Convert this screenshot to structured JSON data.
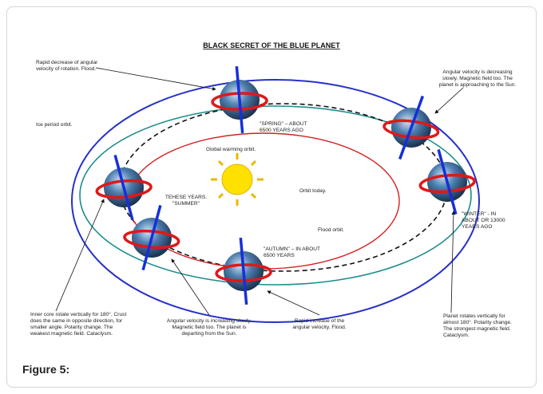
{
  "figure": {
    "title": "BLACK SECRET OF THE BLUE PLANET",
    "caption": "Figure 5:",
    "annotations": [
      {
        "lines": [
          "Rapid decrease of angular",
          "velocity of rotation. Flood."
        ]
      },
      {
        "lines": [
          "Ice period orbit."
        ]
      },
      {
        "lines": [
          "Angular velocity is decreasing",
          "slowly. Magnetic field too. The",
          "planet is approaching to the Sun."
        ]
      },
      {
        "lines": [
          "\"SPRING\" – ABOUT",
          "6500 YEARS AGO"
        ]
      },
      {
        "lines": [
          "Global warming orbit."
        ]
      },
      {
        "lines": [
          "TEHESE YEARS.",
          "\"SUMMER\""
        ]
      },
      {
        "lines": [
          "Orbit today."
        ]
      },
      {
        "lines": [
          "Flood orbit."
        ]
      },
      {
        "lines": [
          "\"WINTER\" - IN",
          "ABOUT OR 13000",
          "YEARS AGO"
        ]
      },
      {
        "lines": [
          "\"AUTUMN\" – IN ABOUT",
          "6500 YEARS"
        ]
      },
      {
        "lines": [
          "Inner core rotate vertically for 180°. Crust",
          "does the same in opposite direction, for",
          "smaller angle. Polarity change. The",
          "weakest magnetic field. Cataclysm."
        ]
      },
      {
        "lines": [
          "Angular velocity is increasing slowly.",
          "Magnetic field too. The planet is",
          "departing from the Sun."
        ]
      },
      {
        "lines": [
          "Rapid increase of the",
          "angular velocity. Flood."
        ]
      },
      {
        "lines": [
          "Planet rotates vertically for",
          "almost 180°. Polarity change.",
          "The strongest magnetic field.",
          "Cataclysm."
        ]
      }
    ]
  }
}
